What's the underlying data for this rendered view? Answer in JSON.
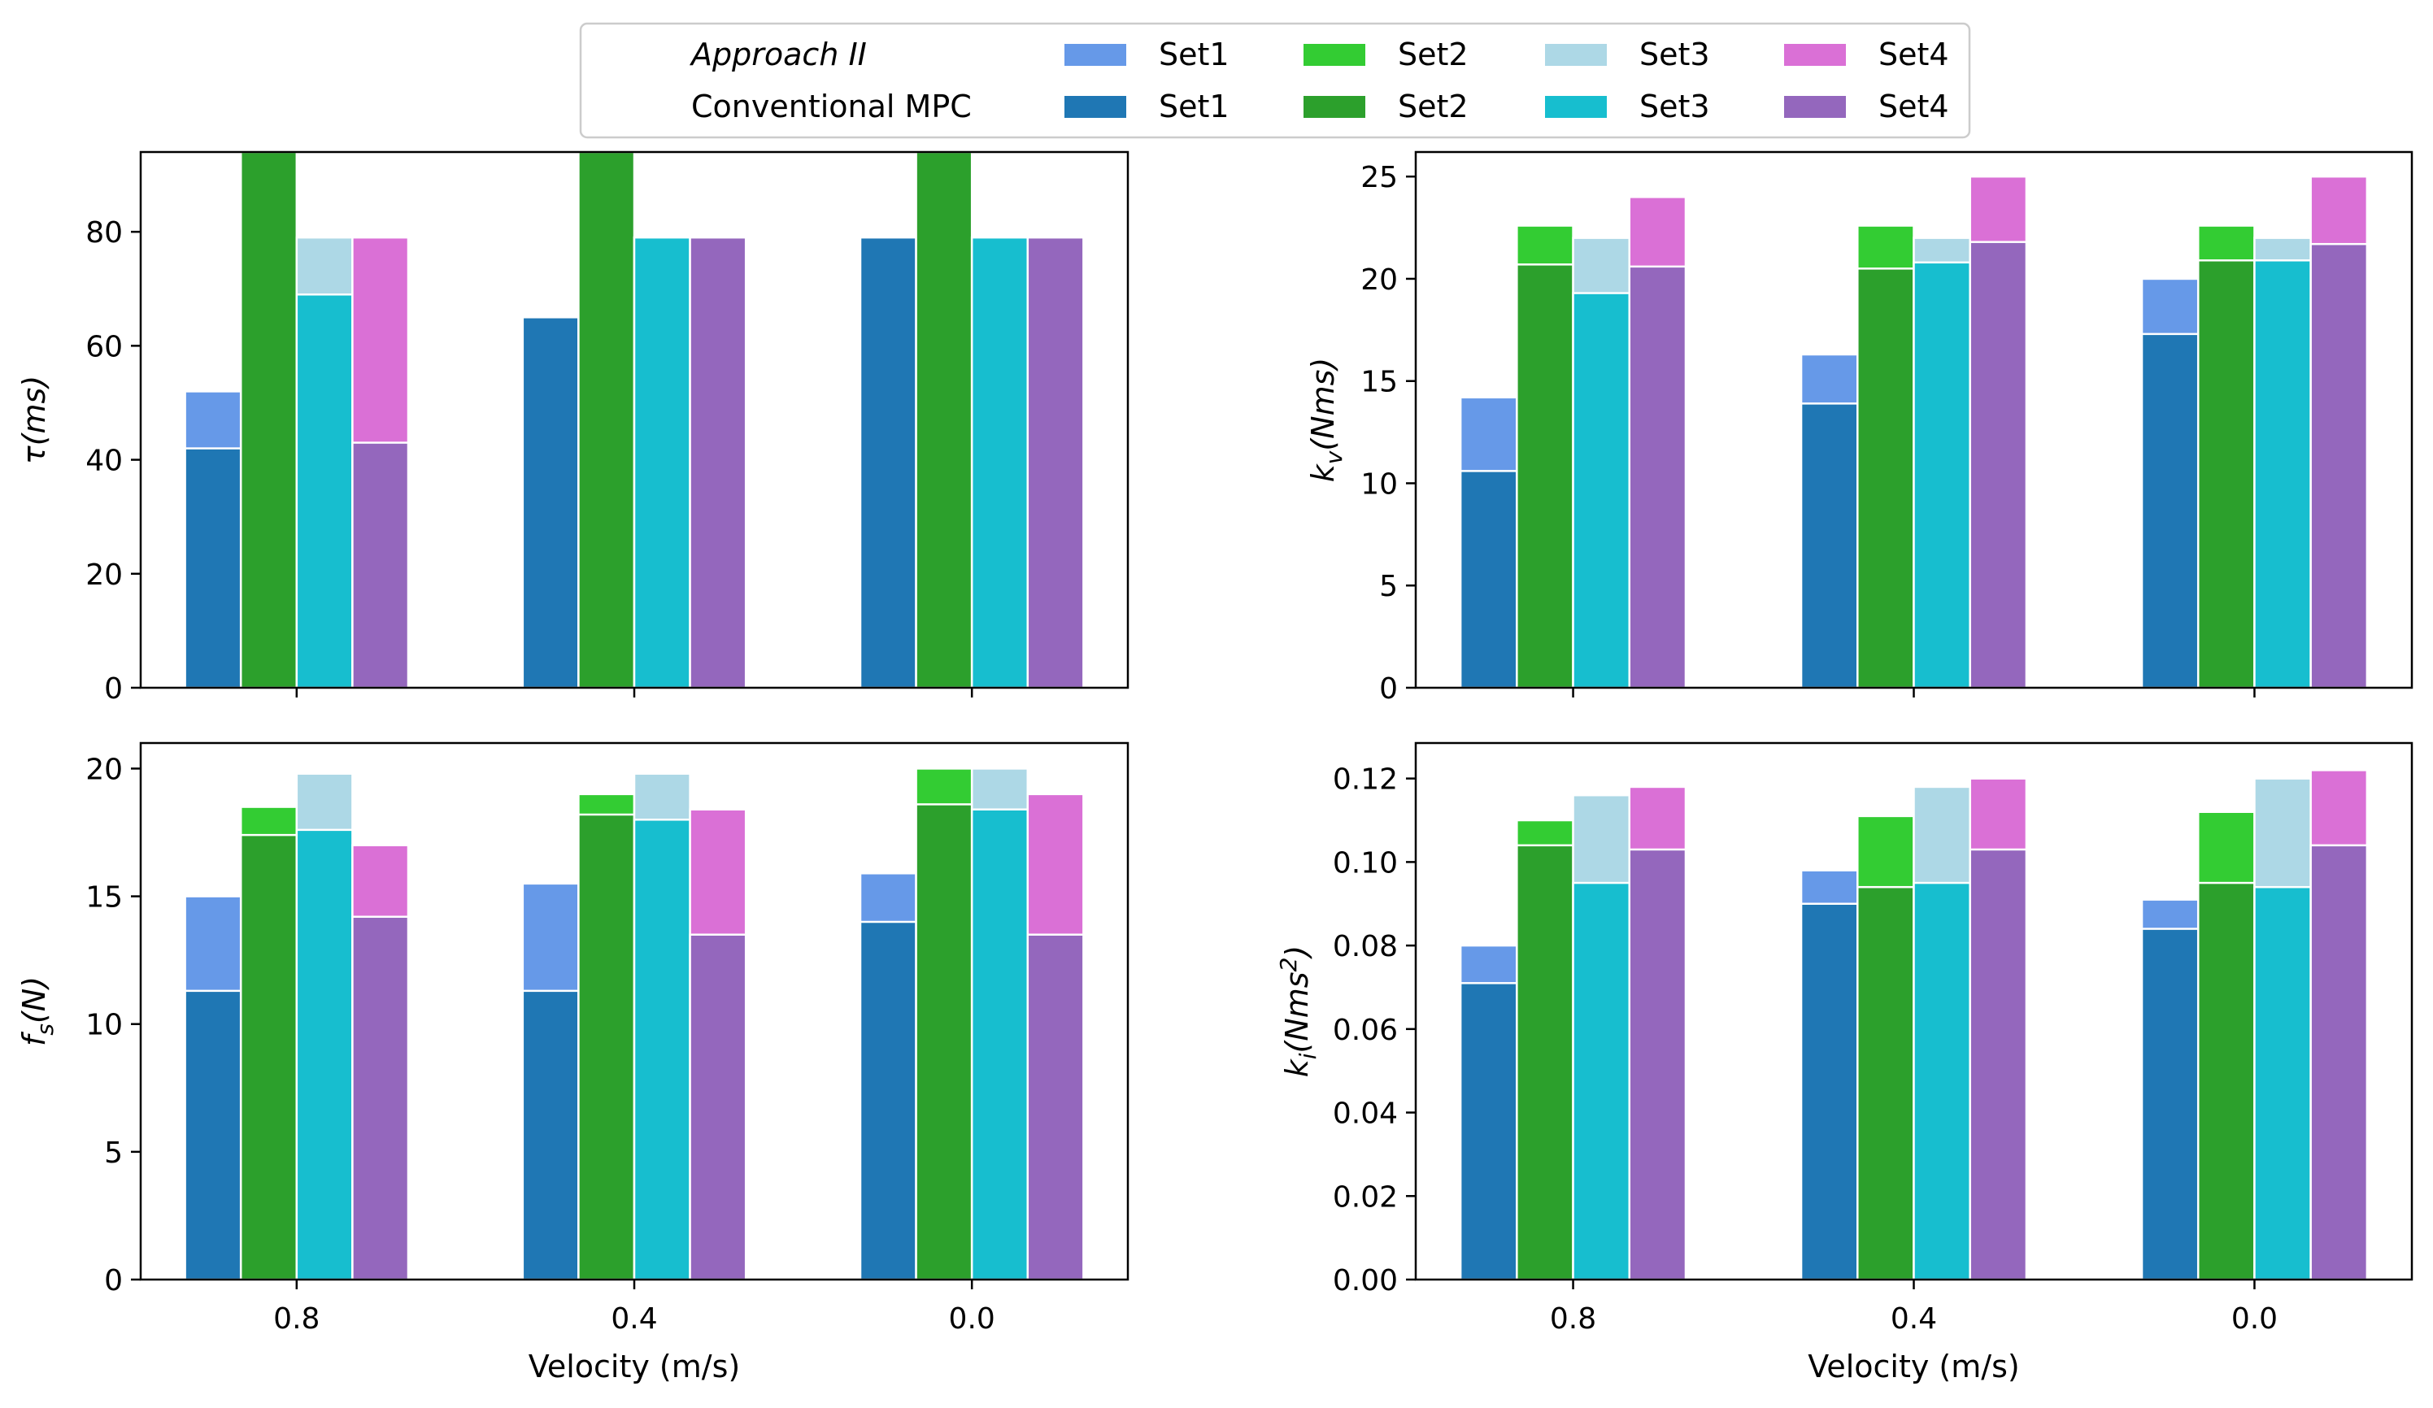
{
  "legend": {
    "approach_label": "Approach II",
    "conventional_label": "Conventional MPC",
    "set_labels": [
      "Set1",
      "Set2",
      "Set3",
      "Set4"
    ],
    "approach_colors": [
      "#6699e8",
      "#33cc33",
      "#add8e6",
      "#da70d6"
    ],
    "conventional_colors": [
      "#1f77b4",
      "#2ca02c",
      "#17becf",
      "#9467bd"
    ]
  },
  "chart_data": [
    {
      "type": "bar",
      "id": "tau",
      "ylabel_main": "τ",
      "ylabel_unit": "(ms)",
      "categories": [
        "0.8",
        "0.4",
        "0.0"
      ],
      "xlabel": "",
      "ylim": [
        0,
        94
      ],
      "yticks": [
        0,
        20,
        40,
        60,
        80
      ],
      "ytick_labels": [
        "0",
        "20",
        "40",
        "60",
        "80"
      ],
      "approach_series": [
        {
          "name": "Set1",
          "values": [
            52,
            65,
            79
          ]
        },
        {
          "name": "Set2",
          "values": [
            94,
            94,
            94
          ]
        },
        {
          "name": "Set3",
          "values": [
            79,
            79,
            79
          ]
        },
        {
          "name": "Set4",
          "values": [
            79,
            79,
            79
          ]
        }
      ],
      "conventional_series": [
        {
          "name": "Set1",
          "values": [
            42,
            65,
            79
          ]
        },
        {
          "name": "Set2",
          "values": [
            94,
            94,
            94
          ]
        },
        {
          "name": "Set3",
          "values": [
            69,
            79,
            79
          ]
        },
        {
          "name": "Set4",
          "values": [
            43,
            79,
            79
          ]
        }
      ]
    },
    {
      "type": "bar",
      "id": "kv",
      "ylabel_main": "k",
      "ylabel_sub": "v",
      "ylabel_unit": "(Nms)",
      "categories": [
        "0.8",
        "0.4",
        "0.0"
      ],
      "xlabel": "",
      "ylim": [
        0,
        26.2
      ],
      "yticks": [
        0,
        5,
        10,
        15,
        20,
        25
      ],
      "ytick_labels": [
        "0",
        "5",
        "10",
        "15",
        "20",
        "25"
      ],
      "approach_series": [
        {
          "name": "Set1",
          "values": [
            14.2,
            16.3,
            20.0
          ]
        },
        {
          "name": "Set2",
          "values": [
            22.6,
            22.6,
            22.6
          ]
        },
        {
          "name": "Set3",
          "values": [
            22.0,
            22.0,
            22.0
          ]
        },
        {
          "name": "Set4",
          "values": [
            24.0,
            25.0,
            25.0
          ]
        }
      ],
      "conventional_series": [
        {
          "name": "Set1",
          "values": [
            10.6,
            13.9,
            17.3
          ]
        },
        {
          "name": "Set2",
          "values": [
            20.7,
            20.5,
            20.9
          ]
        },
        {
          "name": "Set3",
          "values": [
            19.3,
            20.8,
            20.9
          ]
        },
        {
          "name": "Set4",
          "values": [
            20.6,
            21.8,
            21.7
          ]
        }
      ]
    },
    {
      "type": "bar",
      "id": "fs",
      "ylabel_main": "f",
      "ylabel_sub": "s",
      "ylabel_unit": "(N)",
      "categories": [
        "0.8",
        "0.4",
        "0.0"
      ],
      "xlabel": "Velocity (m/s)",
      "ylim": [
        0,
        21
      ],
      "yticks": [
        0,
        5,
        10,
        15,
        20
      ],
      "ytick_labels": [
        "0",
        "5",
        "10",
        "15",
        "20"
      ],
      "approach_series": [
        {
          "name": "Set1",
          "values": [
            15.0,
            15.5,
            15.9
          ]
        },
        {
          "name": "Set2",
          "values": [
            18.5,
            19.0,
            20.0
          ]
        },
        {
          "name": "Set3",
          "values": [
            19.8,
            19.8,
            20.0
          ]
        },
        {
          "name": "Set4",
          "values": [
            17.0,
            18.4,
            19.0
          ]
        }
      ],
      "conventional_series": [
        {
          "name": "Set1",
          "values": [
            11.3,
            11.3,
            14.0
          ]
        },
        {
          "name": "Set2",
          "values": [
            17.4,
            18.2,
            18.6
          ]
        },
        {
          "name": "Set3",
          "values": [
            17.6,
            18.0,
            18.4
          ]
        },
        {
          "name": "Set4",
          "values": [
            14.2,
            13.5,
            13.5
          ]
        }
      ]
    },
    {
      "type": "bar",
      "id": "ki",
      "ylabel_main": "k",
      "ylabel_sub": "i",
      "ylabel_unit": "(Nms",
      "ylabel_sup": "2",
      "ylabel_close": ")",
      "categories": [
        "0.8",
        "0.4",
        "0.0"
      ],
      "xlabel": "Velocity (m/s)",
      "ylim": [
        0,
        0.1285
      ],
      "yticks": [
        0,
        0.02,
        0.04,
        0.06,
        0.08,
        0.1,
        0.12
      ],
      "ytick_labels": [
        "0.00",
        "0.02",
        "0.04",
        "0.06",
        "0.08",
        "0.10",
        "0.12"
      ],
      "approach_series": [
        {
          "name": "Set1",
          "values": [
            0.08,
            0.098,
            0.091
          ]
        },
        {
          "name": "Set2",
          "values": [
            0.11,
            0.111,
            0.112
          ]
        },
        {
          "name": "Set3",
          "values": [
            0.116,
            0.118,
            0.12
          ]
        },
        {
          "name": "Set4",
          "values": [
            0.118,
            0.12,
            0.122
          ]
        }
      ],
      "conventional_series": [
        {
          "name": "Set1",
          "values": [
            0.071,
            0.09,
            0.084
          ]
        },
        {
          "name": "Set2",
          "values": [
            0.104,
            0.094,
            0.095
          ]
        },
        {
          "name": "Set3",
          "values": [
            0.095,
            0.095,
            0.094
          ]
        },
        {
          "name": "Set4",
          "values": [
            0.103,
            0.103,
            0.104
          ]
        }
      ]
    }
  ]
}
